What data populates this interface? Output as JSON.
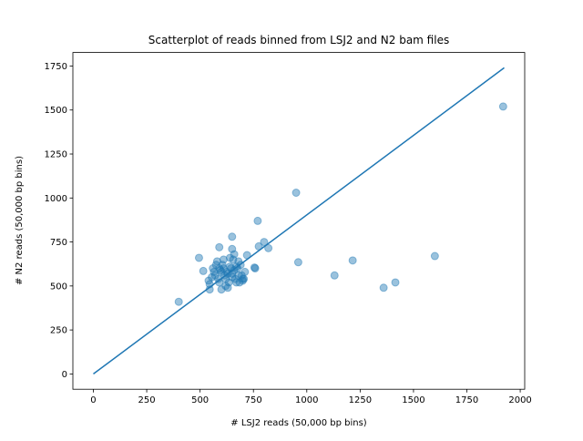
{
  "chart_data": {
    "type": "scatter",
    "title": "Scatterplot of reads binned from LSJ2 and N2 bam files",
    "xlabel": "# LSJ2 reads (50,000 bp bins)",
    "ylabel": "# N2 reads (50,000 bp bins)",
    "color": "#1f77b4",
    "xlim": [
      -96,
      2021
    ],
    "ylim": [
      -87,
      1827
    ],
    "xticks": [
      0,
      250,
      500,
      750,
      1000,
      1250,
      1500,
      1750,
      2000
    ],
    "yticks": [
      0,
      250,
      500,
      750,
      1000,
      1250,
      1500,
      1750
    ],
    "x": [
      400,
      495,
      950,
      770,
      650,
      800,
      820,
      775,
      960,
      1130,
      1215,
      1360,
      1415,
      1600,
      1920,
      755,
      758,
      590,
      650,
      720,
      515,
      545,
      600,
      560,
      570,
      580,
      590,
      600,
      610,
      620,
      630,
      640,
      650,
      660,
      670,
      680,
      690,
      700,
      710,
      555,
      575,
      595,
      615,
      635,
      655,
      675,
      695,
      565,
      585,
      605,
      625,
      645,
      665,
      685,
      540,
      620,
      640,
      660,
      700,
      680,
      610,
      630,
      590,
      650,
      670,
      545,
      705
    ],
    "values": [
      410,
      660,
      1030,
      870,
      780,
      750,
      715,
      725,
      635,
      560,
      645,
      490,
      520,
      670,
      1520,
      605,
      600,
      720,
      710,
      675,
      585,
      480,
      480,
      600,
      560,
      640,
      520,
      580,
      600,
      540,
      570,
      610,
      550,
      590,
      520,
      560,
      620,
      540,
      580,
      550,
      620,
      590,
      560,
      520,
      650,
      600,
      560,
      580,
      540,
      620,
      580,
      600,
      540,
      520,
      530,
      500,
      660,
      680,
      530,
      640,
      650,
      490,
      600,
      570,
      610,
      510,
      540
    ],
    "line": {
      "color": "#1f77b4",
      "x": [
        0,
        1925
      ],
      "values": [
        0,
        1740
      ]
    }
  }
}
